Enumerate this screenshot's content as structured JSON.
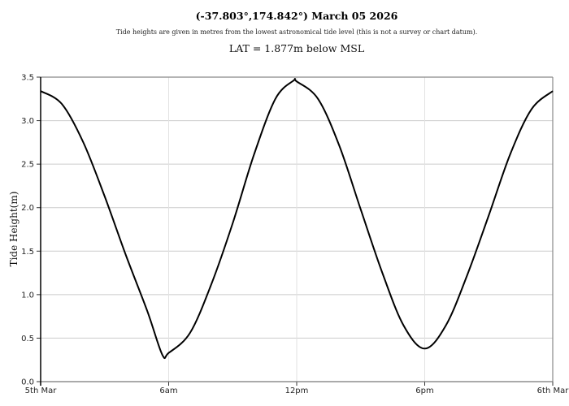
{
  "header": {
    "title": "(-37.803°,174.842°) March 05 2026",
    "subtitle": "Tide heights are given in metres from the lowest astronomical tide level (this is not a survey or chart datum).",
    "lat_note": "LAT = 1.877m below MSL"
  },
  "chart_data": {
    "type": "line",
    "title": "(-37.803°,174.842°) March 05 2026",
    "subtitle": "Tide heights are given in metres from the lowest astronomical tide level (this is not a survey or chart datum).",
    "annotation": "LAT = 1.877m below MSL",
    "xlabel": "",
    "ylabel": "Tide Height(m)",
    "x_unit": "hours since 5th Mar 00:00",
    "xlim": [
      0,
      24
    ],
    "ylim": [
      0,
      3.5
    ],
    "grid": true,
    "legend": null,
    "x_ticks": [
      {
        "value": 0,
        "label": "5th Mar"
      },
      {
        "value": 6,
        "label": "6am"
      },
      {
        "value": 12,
        "label": "12pm"
      },
      {
        "value": 18,
        "label": "6pm"
      },
      {
        "value": 24,
        "label": "6th Mar"
      }
    ],
    "y_ticks": [
      "0.0",
      "0.5",
      "1.0",
      "1.5",
      "2.0",
      "2.5",
      "3.0",
      "3.5"
    ],
    "y_tick_values": [
      0,
      0.5,
      1.0,
      1.5,
      2.0,
      2.5,
      3.0,
      3.5
    ],
    "series": [
      {
        "name": "Tide Height",
        "color": "#000000",
        "x": [
          0,
          1,
          2,
          3,
          4,
          5,
          5.7,
          6,
          7,
          8,
          9,
          10,
          11,
          11.85,
          12,
          13,
          14,
          15,
          16,
          17,
          18,
          19,
          20,
          21,
          22,
          23,
          24
        ],
        "values": [
          3.34,
          3.19,
          2.75,
          2.13,
          1.45,
          0.81,
          0.31,
          0.33,
          0.56,
          1.12,
          1.82,
          2.61,
          3.25,
          3.46,
          3.45,
          3.25,
          2.71,
          1.98,
          1.26,
          0.65,
          0.38,
          0.65,
          1.23,
          1.91,
          2.61,
          3.13,
          3.34
        ]
      }
    ],
    "extrema": [
      {
        "type": "low",
        "time_h": 5.7,
        "height": 0.31
      },
      {
        "type": "high",
        "time_h": 11.85,
        "height": 3.46
      },
      {
        "type": "low",
        "time_h": 18.0,
        "height": 0.38
      }
    ]
  }
}
